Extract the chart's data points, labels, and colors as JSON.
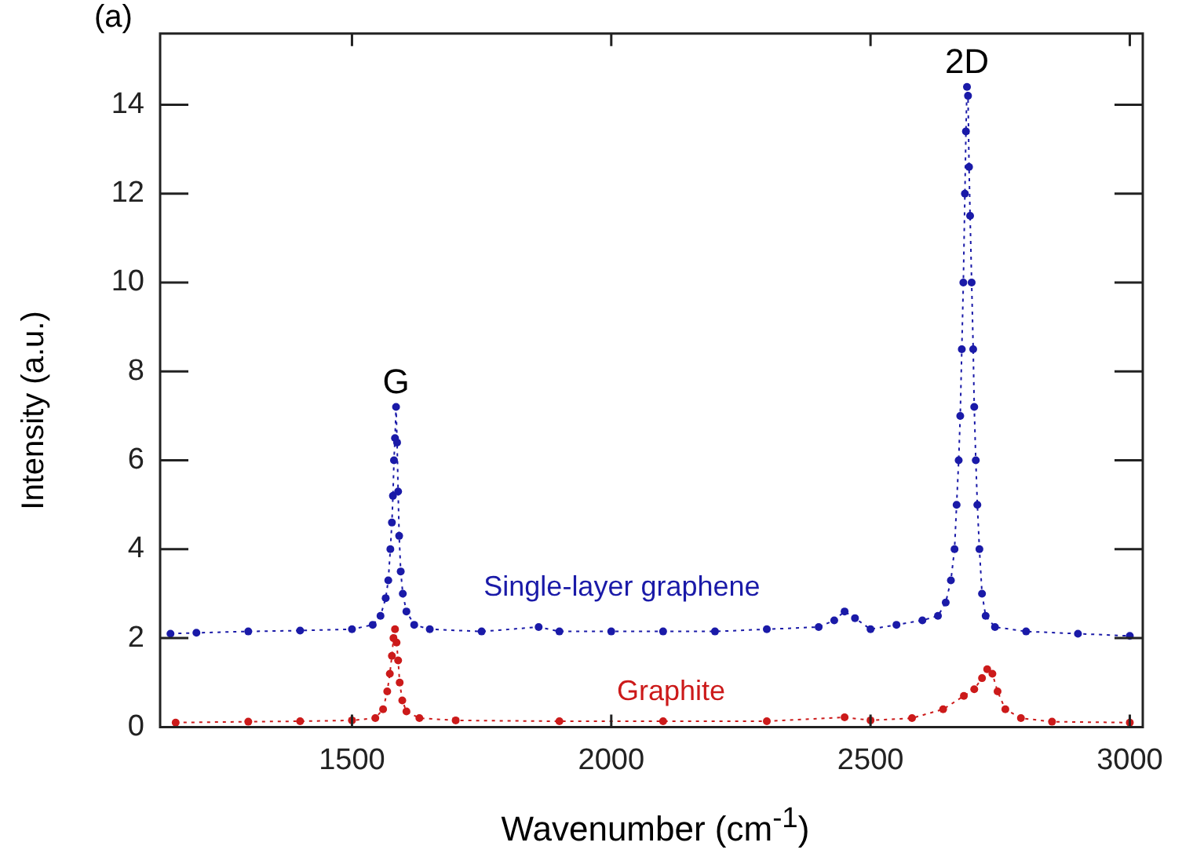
{
  "chart_data": {
    "type": "line",
    "xlabel": "Wavenumber (cm$^{-1}$)",
    "ylabel": "Intensity (a.u.)",
    "xlim": [
      1130,
      3025
    ],
    "xticks": [
      1500,
      2000,
      2500,
      3000
    ],
    "ylim": [
      0,
      15.6
    ],
    "yticks": [
      0,
      2,
      4,
      6,
      8,
      10,
      12,
      14
    ],
    "grid": false,
    "legend": false,
    "marker": "circle",
    "line_style": "dotted",
    "annotations": [
      "(a)",
      {
        "text": "G",
        "x": 1585,
        "y": 7.2
      },
      {
        "text": "2D",
        "x": 2686,
        "y": 14.4
      }
    ],
    "series": [
      {
        "name": "Single-layer graphene",
        "color": "#1a1aa8",
        "x": [
          1150,
          1200,
          1300,
          1400,
          1500,
          1540,
          1555,
          1565,
          1570,
          1574,
          1577,
          1579,
          1581,
          1583,
          1585,
          1587,
          1589,
          1591,
          1594,
          1598,
          1605,
          1620,
          1650,
          1750,
          1860,
          1900,
          2000,
          2100,
          2200,
          2300,
          2400,
          2430,
          2450,
          2470,
          2500,
          2550,
          2600,
          2630,
          2645,
          2655,
          2662,
          2666,
          2670,
          2673,
          2676,
          2679,
          2682,
          2684,
          2686,
          2688,
          2690,
          2692,
          2695,
          2698,
          2700,
          2703,
          2706,
          2710,
          2715,
          2722,
          2740,
          2800,
          2900,
          3000
        ],
        "values": [
          2.1,
          2.12,
          2.15,
          2.17,
          2.2,
          2.3,
          2.5,
          2.9,
          3.3,
          4.0,
          4.6,
          5.2,
          6.0,
          6.5,
          7.2,
          6.4,
          5.3,
          4.3,
          3.5,
          3.0,
          2.6,
          2.3,
          2.2,
          2.15,
          2.25,
          2.15,
          2.15,
          2.15,
          2.15,
          2.2,
          2.25,
          2.4,
          2.6,
          2.45,
          2.2,
          2.3,
          2.4,
          2.5,
          2.8,
          3.3,
          4.0,
          5.0,
          6.0,
          7.0,
          8.5,
          10.0,
          12.0,
          13.4,
          14.4,
          14.2,
          12.6,
          11.5,
          10.0,
          8.5,
          7.2,
          6.0,
          5.0,
          4.0,
          3.0,
          2.5,
          2.25,
          2.15,
          2.1,
          2.05
        ]
      },
      {
        "name": "Graphite",
        "color": "#cc1a1a",
        "x": [
          1160,
          1300,
          1400,
          1500,
          1545,
          1560,
          1568,
          1573,
          1577,
          1580,
          1583,
          1586,
          1589,
          1592,
          1597,
          1605,
          1630,
          1700,
          1900,
          2100,
          2300,
          2450,
          2500,
          2580,
          2640,
          2680,
          2700,
          2715,
          2725,
          2735,
          2745,
          2760,
          2790,
          2850,
          3000
        ],
        "values": [
          0.1,
          0.12,
          0.13,
          0.15,
          0.2,
          0.4,
          0.8,
          1.2,
          1.6,
          2.0,
          2.2,
          1.9,
          1.5,
          1.0,
          0.6,
          0.35,
          0.2,
          0.15,
          0.13,
          0.13,
          0.13,
          0.22,
          0.15,
          0.2,
          0.4,
          0.7,
          0.85,
          1.1,
          1.3,
          1.2,
          0.8,
          0.4,
          0.2,
          0.12,
          0.1
        ]
      }
    ]
  }
}
